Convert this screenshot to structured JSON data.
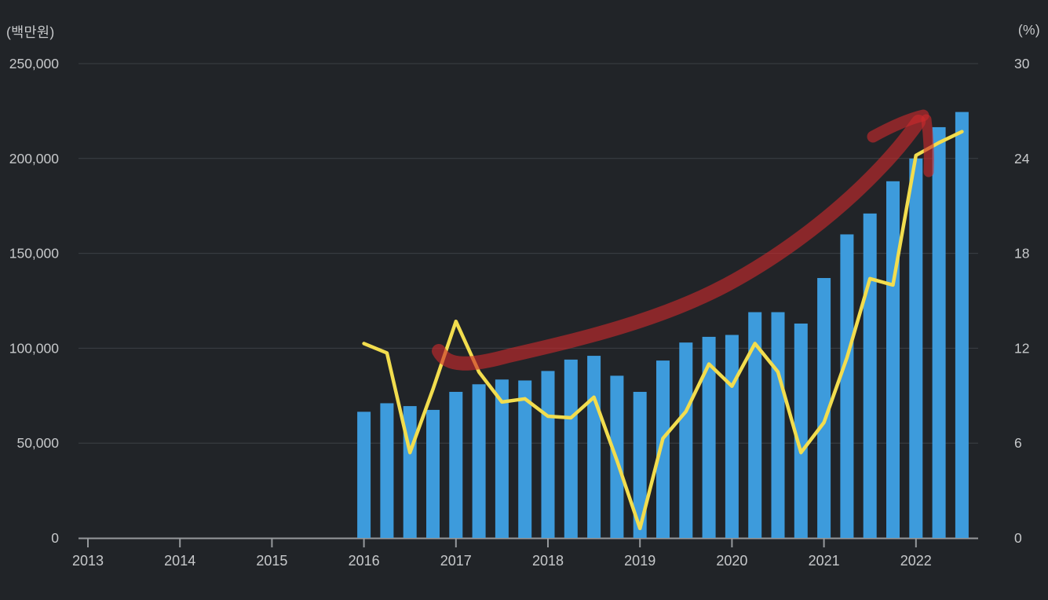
{
  "page": {
    "background_color": "#212428",
    "text_color": "#c7c9cb"
  },
  "colors": {
    "bar": "#3d9bdc",
    "line": "#f2dd4e",
    "annotation_red": "rgba(203,42,44,0.62)",
    "grid": "#3c4045",
    "axis": "#96999c",
    "tick_text": "#c7c9cb"
  },
  "chart_data": {
    "type": "combo-bar-line",
    "title": "",
    "legend": "none",
    "grid": "horizontal-only",
    "x_categories": [
      "2016Q1",
      "2016Q2",
      "2016Q3",
      "2016Q4",
      "2017Q1",
      "2017Q2",
      "2017Q3",
      "2017Q4",
      "2018Q1",
      "2018Q2",
      "2018Q3",
      "2018Q4",
      "2019Q1",
      "2019Q2",
      "2019Q3",
      "2019Q4",
      "2020Q1",
      "2020Q2",
      "2020Q3",
      "2020Q4",
      "2021Q1",
      "2021Q2",
      "2021Q3",
      "2021Q4",
      "2022Q1",
      "2022Q2",
      "2022Q3"
    ],
    "series": [
      {
        "name": "bar-series",
        "type": "bar",
        "axis": "left",
        "values": [
          66500,
          71000,
          69500,
          67500,
          77000,
          81000,
          83500,
          83000,
          88000,
          94000,
          96000,
          85500,
          77000,
          93500,
          103000,
          106000,
          107000,
          119000,
          119000,
          113000,
          137000,
          160000,
          171000,
          188000,
          200000,
          216500,
          224500
        ]
      },
      {
        "name": "line-series",
        "type": "line",
        "axis": "right",
        "values": [
          12.3,
          11.7,
          5.4,
          9.4,
          13.7,
          10.5,
          8.6,
          8.8,
          7.7,
          7.6,
          8.9,
          4.9,
          0.6,
          6.3,
          8.0,
          11.0,
          9.6,
          12.3,
          10.5,
          5.4,
          7.3,
          11.4,
          16.4,
          16.0,
          24.2,
          25.0,
          25.7
        ]
      }
    ],
    "x_axis": {
      "tick_labels": [
        "2013",
        "2014",
        "2015",
        "2016",
        "2017",
        "2018",
        "2019",
        "2020",
        "2021",
        "2022"
      ],
      "tick_values": [
        2013,
        2014,
        2015,
        2016,
        2017,
        2018,
        2019,
        2020,
        2021,
        2022
      ]
    },
    "left_axis": {
      "unit": "(백만원)",
      "tick_labels": [
        "0",
        "50,000",
        "100,000",
        "150,000",
        "200,000",
        "250,000"
      ],
      "tick_values": [
        0,
        50000,
        100000,
        150000,
        200000,
        250000
      ],
      "range": [
        0,
        250000
      ]
    },
    "right_axis": {
      "unit": "(%)",
      "tick_labels": [
        "0",
        "6",
        "12",
        "18",
        "24",
        "30"
      ],
      "tick_values": [
        0,
        6,
        12,
        18,
        24,
        30
      ],
      "range": [
        0,
        30
      ]
    },
    "annotation": {
      "type": "hand-drawn-arrow",
      "description": "thick semi-transparent dark-red arrow curving upward from the 2017 / 100,000 area to the 2022 peak, arrowhead pointing up-right with a short downward flick"
    }
  }
}
